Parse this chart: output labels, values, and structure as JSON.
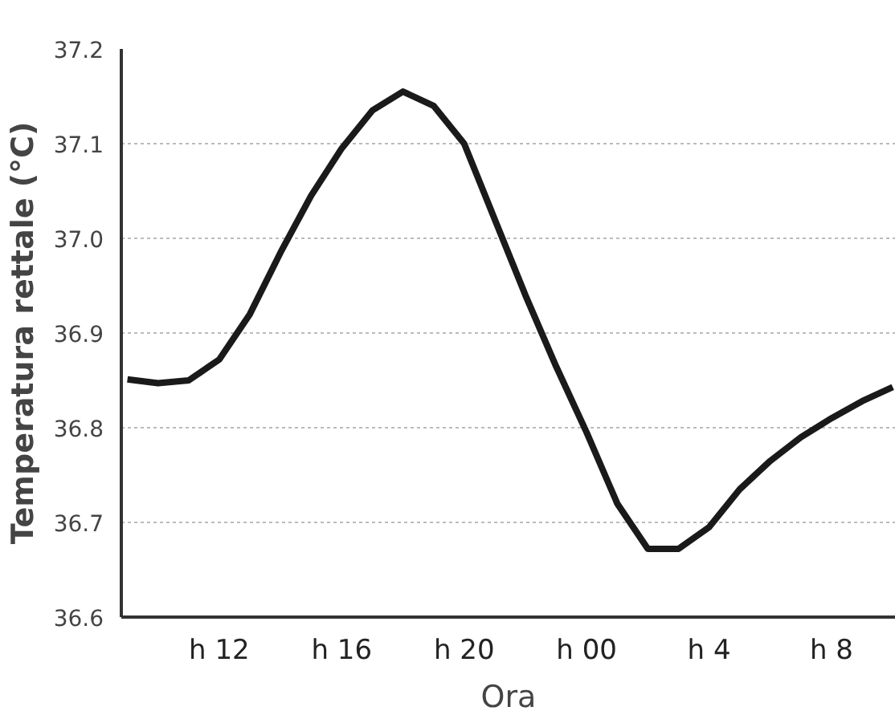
{
  "chart_data": {
    "type": "line",
    "xlabel": "Ora",
    "ylabel": "Temperatura rettale (°C)",
    "categories": [
      null,
      null,
      null,
      "h 12",
      null,
      null,
      null,
      "h 16",
      null,
      null,
      null,
      "h 20",
      null,
      null,
      null,
      "h 00",
      null,
      null,
      null,
      "h 4",
      null,
      null,
      null,
      "h 8",
      null,
      null
    ],
    "series": [
      {
        "color": "#1a1a1a",
        "values": [
          36.851,
          36.847,
          36.85,
          36.872,
          36.92,
          36.985,
          37.045,
          37.095,
          37.135,
          37.155,
          37.14,
          37.1,
          37.02,
          36.94,
          36.865,
          36.795,
          36.72,
          36.672,
          36.672,
          36.695,
          36.735,
          36.765,
          36.79,
          36.81,
          36.828,
          36.843
        ]
      }
    ],
    "ylim": [
      36.6,
      37.2
    ],
    "yticks": [
      {
        "value": 36.6,
        "label": "36.6"
      },
      {
        "value": 36.7,
        "label": "36.7"
      },
      {
        "value": 36.8,
        "label": "36.8"
      },
      {
        "value": 36.9,
        "label": "36.9"
      },
      {
        "value": 37.0,
        "label": "37.0"
      },
      {
        "value": 37.1,
        "label": "37.1"
      },
      {
        "value": 37.2,
        "label": "37.2"
      }
    ],
    "grid": "y",
    "line_style": "solid"
  }
}
